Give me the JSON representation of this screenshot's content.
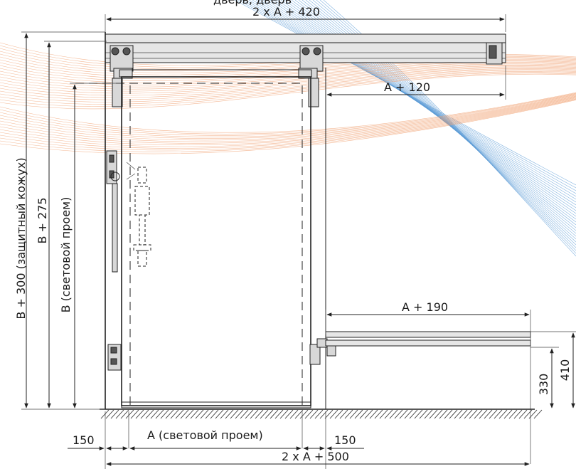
{
  "dimensions": {
    "top_width": "2 x A + 420",
    "overhang_top": "A + 120",
    "cover_height": "B + 300 (защитный кожух)",
    "height_275": "B + 275",
    "clear_height": "B (световой проем)",
    "bottom_rail": "A + 190",
    "rail_height_330": "330",
    "rail_height_410": "410",
    "left_offset": "150",
    "clear_width": "A (световой проем)",
    "right_offset": "150",
    "bottom_width": "2 x A + 500",
    "clipped_top_text": "дверь, дверь"
  }
}
